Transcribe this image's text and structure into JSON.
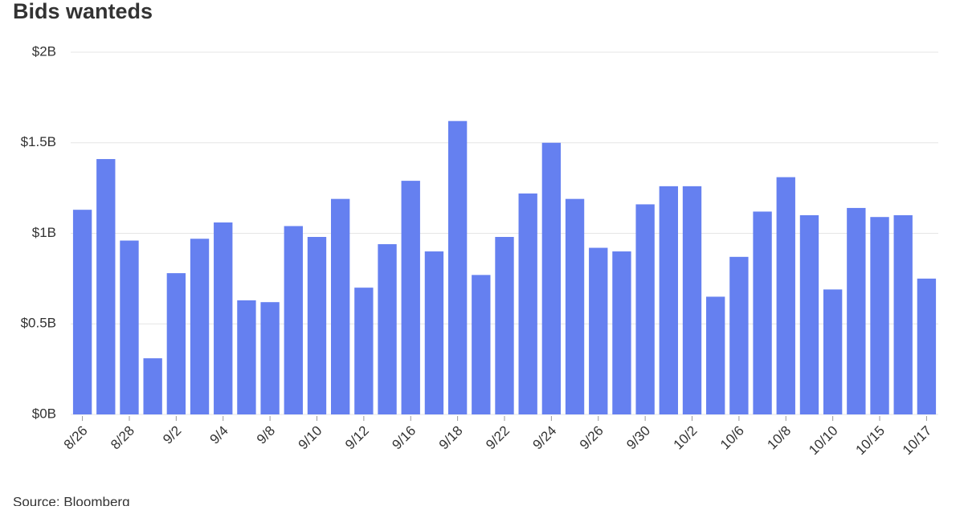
{
  "chart_data": {
    "type": "bar",
    "title": "Bids wanteds",
    "source": "Source: Bloomberg",
    "categories": [
      "8/26",
      null,
      "8/28",
      null,
      "9/2",
      null,
      "9/4",
      null,
      "9/8",
      null,
      "9/10",
      null,
      "9/12",
      null,
      "9/16",
      null,
      "9/18",
      null,
      "9/22",
      null,
      "9/24",
      null,
      "9/26",
      null,
      "9/30",
      null,
      "10/2",
      null,
      "10/6",
      null,
      "10/8",
      null,
      "10/10",
      null,
      "10/15",
      null,
      "10/17"
    ],
    "values": [
      1.13,
      1.41,
      0.96,
      0.31,
      0.78,
      0.97,
      1.06,
      0.63,
      0.62,
      1.04,
      0.98,
      1.19,
      0.7,
      0.94,
      1.29,
      0.9,
      1.62,
      0.77,
      0.98,
      1.22,
      1.5,
      1.19,
      0.92,
      0.9,
      1.16,
      1.26,
      1.26,
      0.65,
      0.87,
      1.12,
      1.31,
      1.1,
      0.69,
      1.14,
      1.09,
      1.1,
      0.75
    ],
    "color": "#6580f0",
    "ylim": [
      0,
      2
    ],
    "yticks": [
      {
        "value": 0,
        "label": "$0B"
      },
      {
        "value": 0.5,
        "label": "$0.5B"
      },
      {
        "value": 1,
        "label": "$1B"
      },
      {
        "value": 1.5,
        "label": "$1.5B"
      },
      {
        "value": 2,
        "label": "$2B"
      }
    ],
    "grid": true
  }
}
